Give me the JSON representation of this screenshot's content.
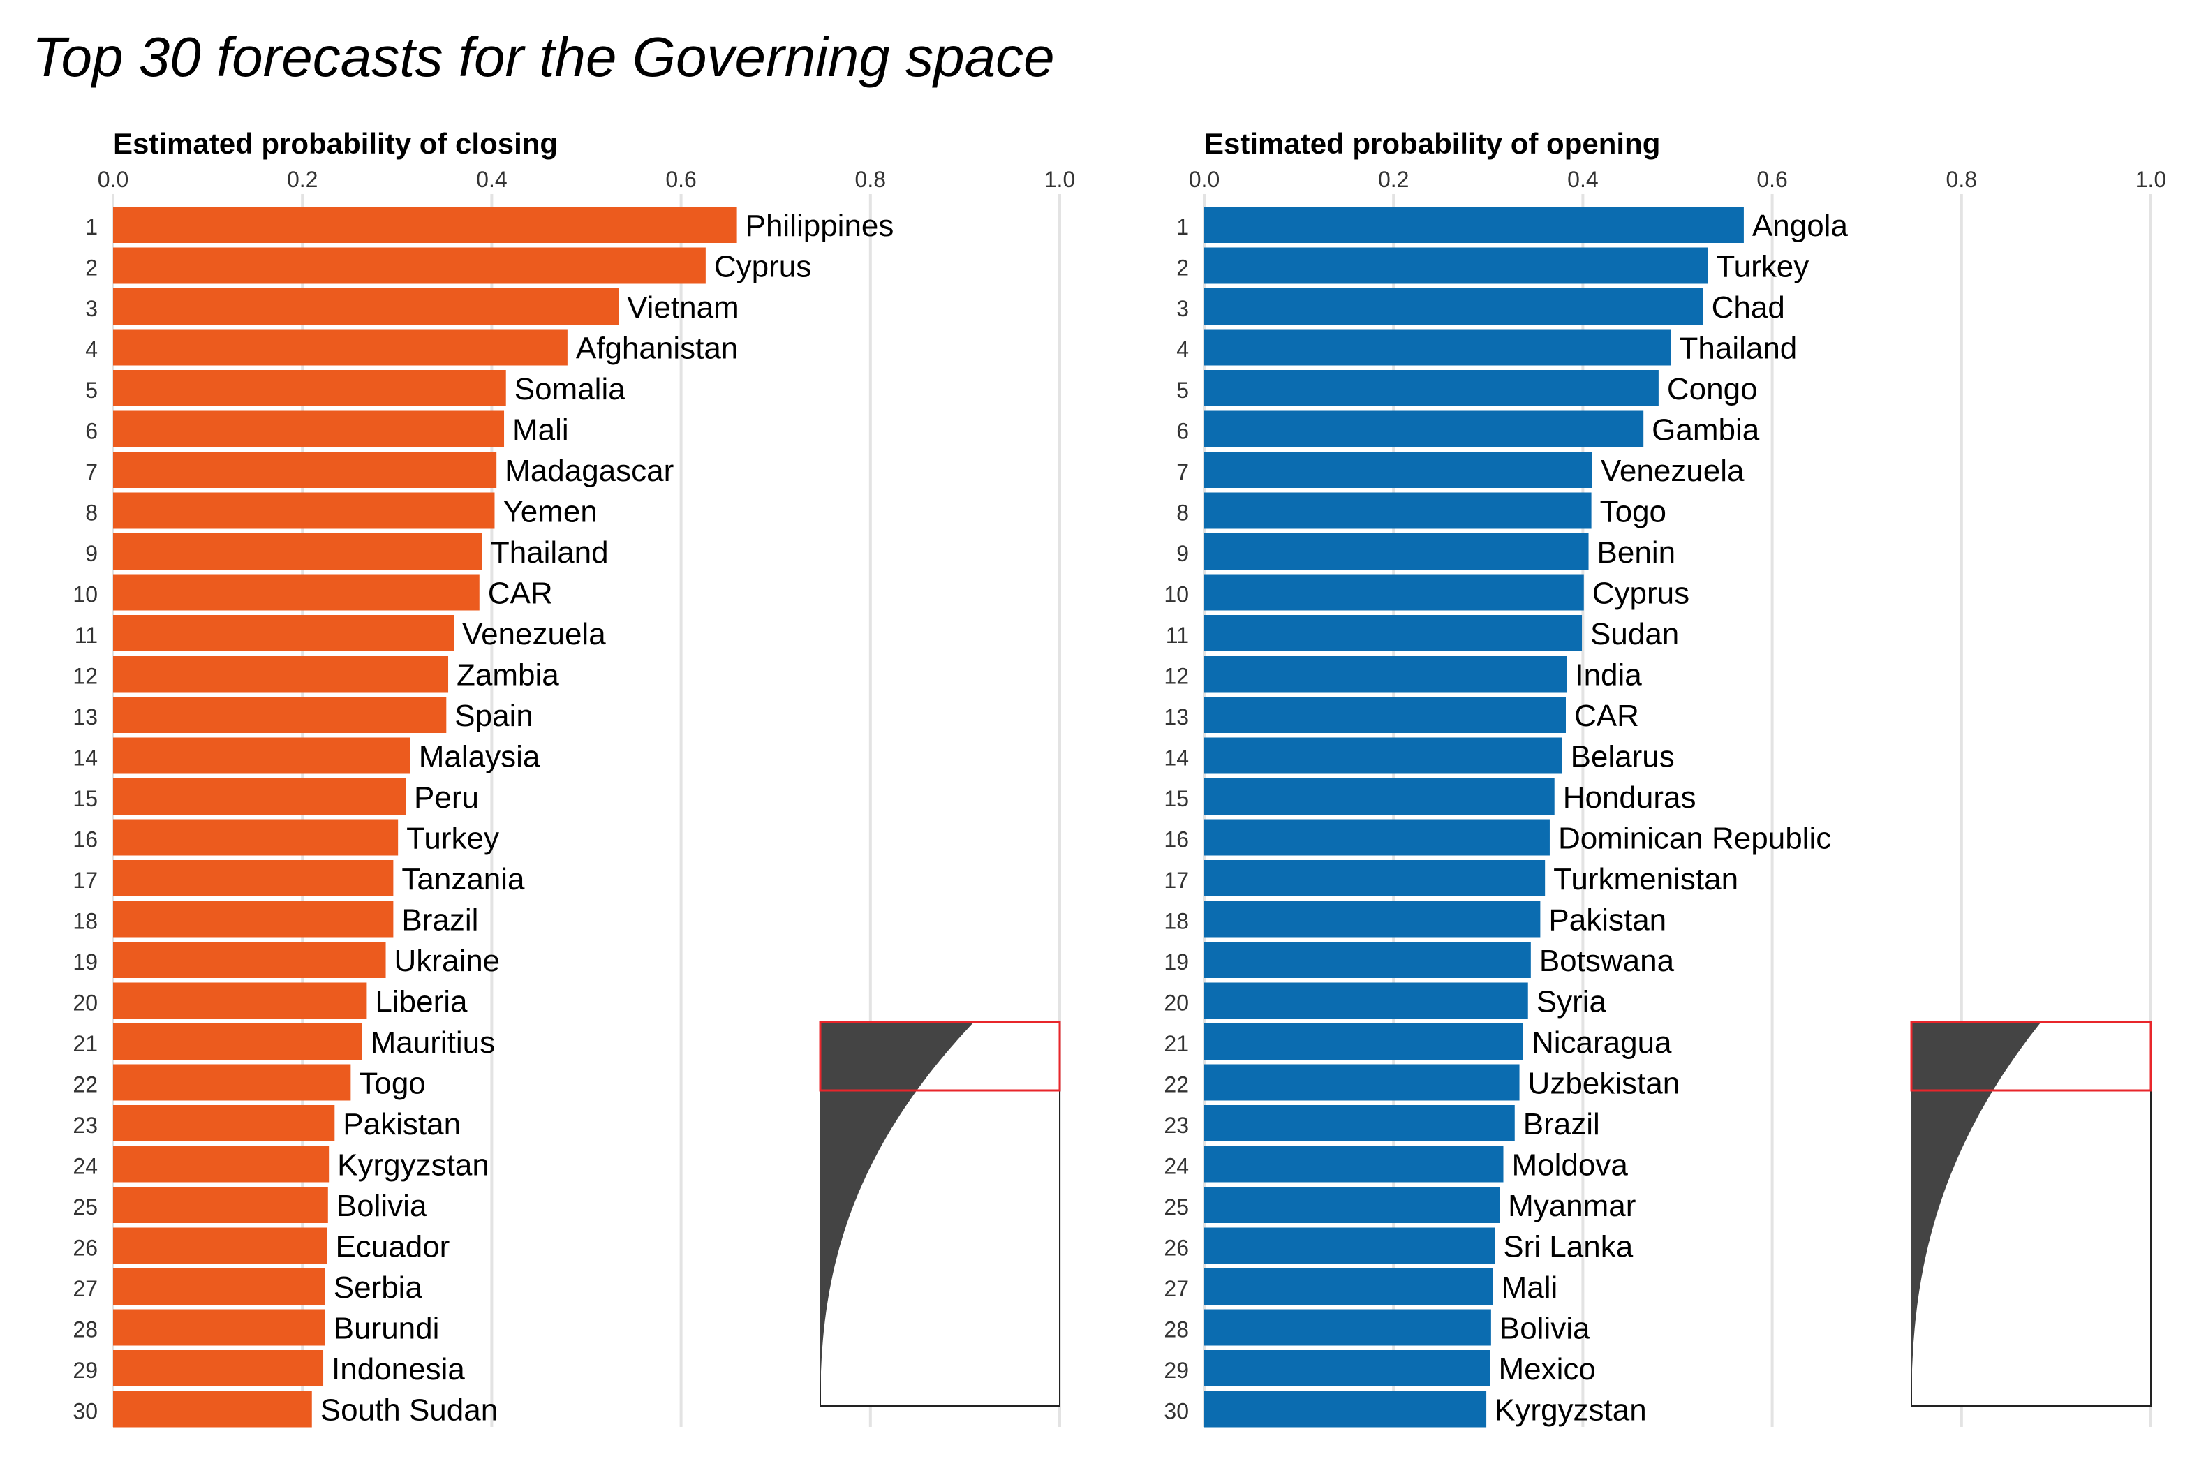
{
  "title": "Top 30 forecasts for the Governing space",
  "colors": {
    "closing": "#EC5B1E",
    "opening": "#0B6CB0",
    "grid": "#E3E3E3",
    "inset_fill": "#444444",
    "inset_highlight": "#E8262B",
    "rank_text": "#333333"
  },
  "chart_data": [
    {
      "type": "bar",
      "orientation": "horizontal",
      "title": "Estimated probability of closing",
      "xlim": [
        0,
        1
      ],
      "xticks": [
        "0.0",
        "0.2",
        "0.4",
        "0.6",
        "0.8",
        "1.0"
      ],
      "grid": true,
      "ranks": [
        "1",
        "2",
        "3",
        "4",
        "5",
        "6",
        "7",
        "8",
        "9",
        "10",
        "11",
        "12",
        "13",
        "14",
        "15",
        "16",
        "17",
        "18",
        "19",
        "20",
        "21",
        "22",
        "23",
        "24",
        "25",
        "26",
        "27",
        "28",
        "29",
        "30"
      ],
      "categories": [
        "Philippines",
        "Cyprus",
        "Vietnam",
        "Afghanistan",
        "Somalia",
        "Mali",
        "Madagascar",
        "Yemen",
        "Thailand",
        "CAR",
        "Venezuela",
        "Zambia",
        "Spain",
        "Malaysia",
        "Peru",
        "Turkey",
        "Tanzania",
        "Brazil",
        "Ukraine",
        "Liberia",
        "Mauritius",
        "Togo",
        "Pakistan",
        "Kyrgyzstan",
        "Bolivia",
        "Ecuador",
        "Serbia",
        "Burundi",
        "Indonesia",
        "South Sudan"
      ],
      "values": [
        0.659,
        0.626,
        0.534,
        0.48,
        0.415,
        0.413,
        0.405,
        0.403,
        0.39,
        0.387,
        0.36,
        0.354,
        0.352,
        0.314,
        0.309,
        0.301,
        0.296,
        0.296,
        0.288,
        0.268,
        0.263,
        0.251,
        0.234,
        0.228,
        0.227,
        0.226,
        0.224,
        0.224,
        0.222,
        0.21
      ],
      "inset": {
        "description_shape": "sorted distribution of all forecasts with top-30 highlighted"
      }
    },
    {
      "type": "bar",
      "orientation": "horizontal",
      "title": "Estimated probability of opening",
      "xlim": [
        0,
        1
      ],
      "xticks": [
        "0.0",
        "0.2",
        "0.4",
        "0.6",
        "0.8",
        "1.0"
      ],
      "grid": true,
      "ranks": [
        "1",
        "2",
        "3",
        "4",
        "5",
        "6",
        "7",
        "8",
        "9",
        "10",
        "11",
        "12",
        "13",
        "14",
        "15",
        "16",
        "17",
        "18",
        "19",
        "20",
        "21",
        "22",
        "23",
        "24",
        "25",
        "26",
        "27",
        "28",
        "29",
        "30"
      ],
      "categories": [
        "Angola",
        "Turkey",
        "Chad",
        "Thailand",
        "Congo",
        "Gambia",
        "Venezuela",
        "Togo",
        "Benin",
        "Cyprus",
        "Sudan",
        "India",
        "CAR",
        "Belarus",
        "Honduras",
        "Dominican Republic",
        "Turkmenistan",
        "Pakistan",
        "Botswana",
        "Syria",
        "Nicaragua",
        "Uzbekistan",
        "Brazil",
        "Moldova",
        "Myanmar",
        "Sri Lanka",
        "Mali",
        "Bolivia",
        "Mexico",
        "Kyrgyzstan"
      ],
      "values": [
        0.57,
        0.532,
        0.527,
        0.493,
        0.48,
        0.464,
        0.41,
        0.409,
        0.406,
        0.401,
        0.399,
        0.383,
        0.382,
        0.378,
        0.37,
        0.365,
        0.36,
        0.355,
        0.345,
        0.342,
        0.337,
        0.333,
        0.328,
        0.316,
        0.312,
        0.307,
        0.305,
        0.303,
        0.302,
        0.298
      ]
    }
  ]
}
